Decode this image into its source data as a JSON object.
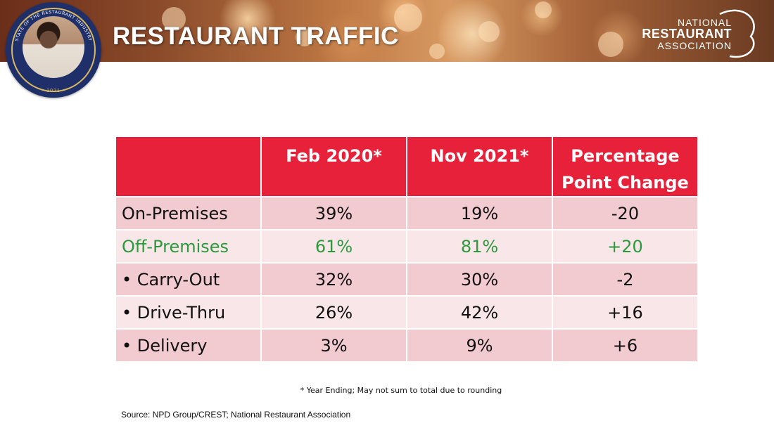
{
  "header": {
    "title": "RESTAURANT TRAFFIC",
    "badge_arc_text": "STATE OF THE RESTAURANT INDUSTRY",
    "badge_year": "2021",
    "logo": {
      "line1": "NATIONAL",
      "line2": "RESTAURANT",
      "line3": "ASSOCIATION"
    }
  },
  "table": {
    "headers": [
      "",
      "Feb 2020*",
      "Nov 2021*",
      "Percentage\nPoint Change"
    ],
    "rows": [
      {
        "label": "On-Premises",
        "feb2020": "39%",
        "nov2021": "19%",
        "change": "-20"
      },
      {
        "label": "Off-Premises",
        "feb2020": "61%",
        "nov2021": "81%",
        "change": "+20"
      },
      {
        "label": "•  Carry-Out",
        "feb2020": "32%",
        "nov2021": "30%",
        "change": "-2"
      },
      {
        "label": "•  Drive-Thru",
        "feb2020": "26%",
        "nov2021": "42%",
        "change": "+16"
      },
      {
        "label": "•  Delivery",
        "feb2020": "3%",
        "nov2021": "9%",
        "change": "+6"
      }
    ]
  },
  "footnote": "* Year Ending; May not sum to total due to rounding",
  "source": "Source: NPD Group/CREST;  National Restaurant Association",
  "colors": {
    "header_red": "#e8213a",
    "row_dark": "#f2cbd0",
    "row_light": "#f9e6e8",
    "highlight_green": "#2a9a3c",
    "badge_navy": "#1e2f6a"
  }
}
